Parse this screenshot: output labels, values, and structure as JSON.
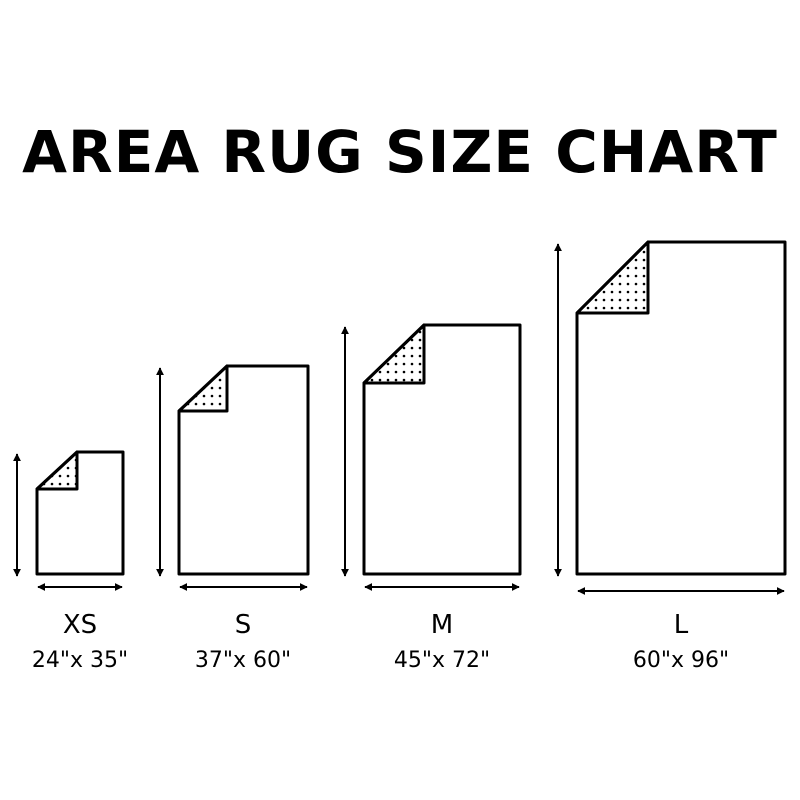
{
  "title": "AREA RUG SIZE CHART",
  "colors": {
    "line": "#000000",
    "background": "#ffffff"
  },
  "rugs": [
    {
      "size": "XS",
      "dims": "24\"x 35\"",
      "width_in": 24,
      "length_in": 35
    },
    {
      "size": "S",
      "dims": "37\"x 60\"",
      "width_in": 37,
      "length_in": 60
    },
    {
      "size": "M",
      "dims": "45\"x 72\"",
      "width_in": 45,
      "length_in": 72
    },
    {
      "size": "L",
      "dims": "60\"x 96\"",
      "width_in": 60,
      "length_in": 96
    }
  ]
}
